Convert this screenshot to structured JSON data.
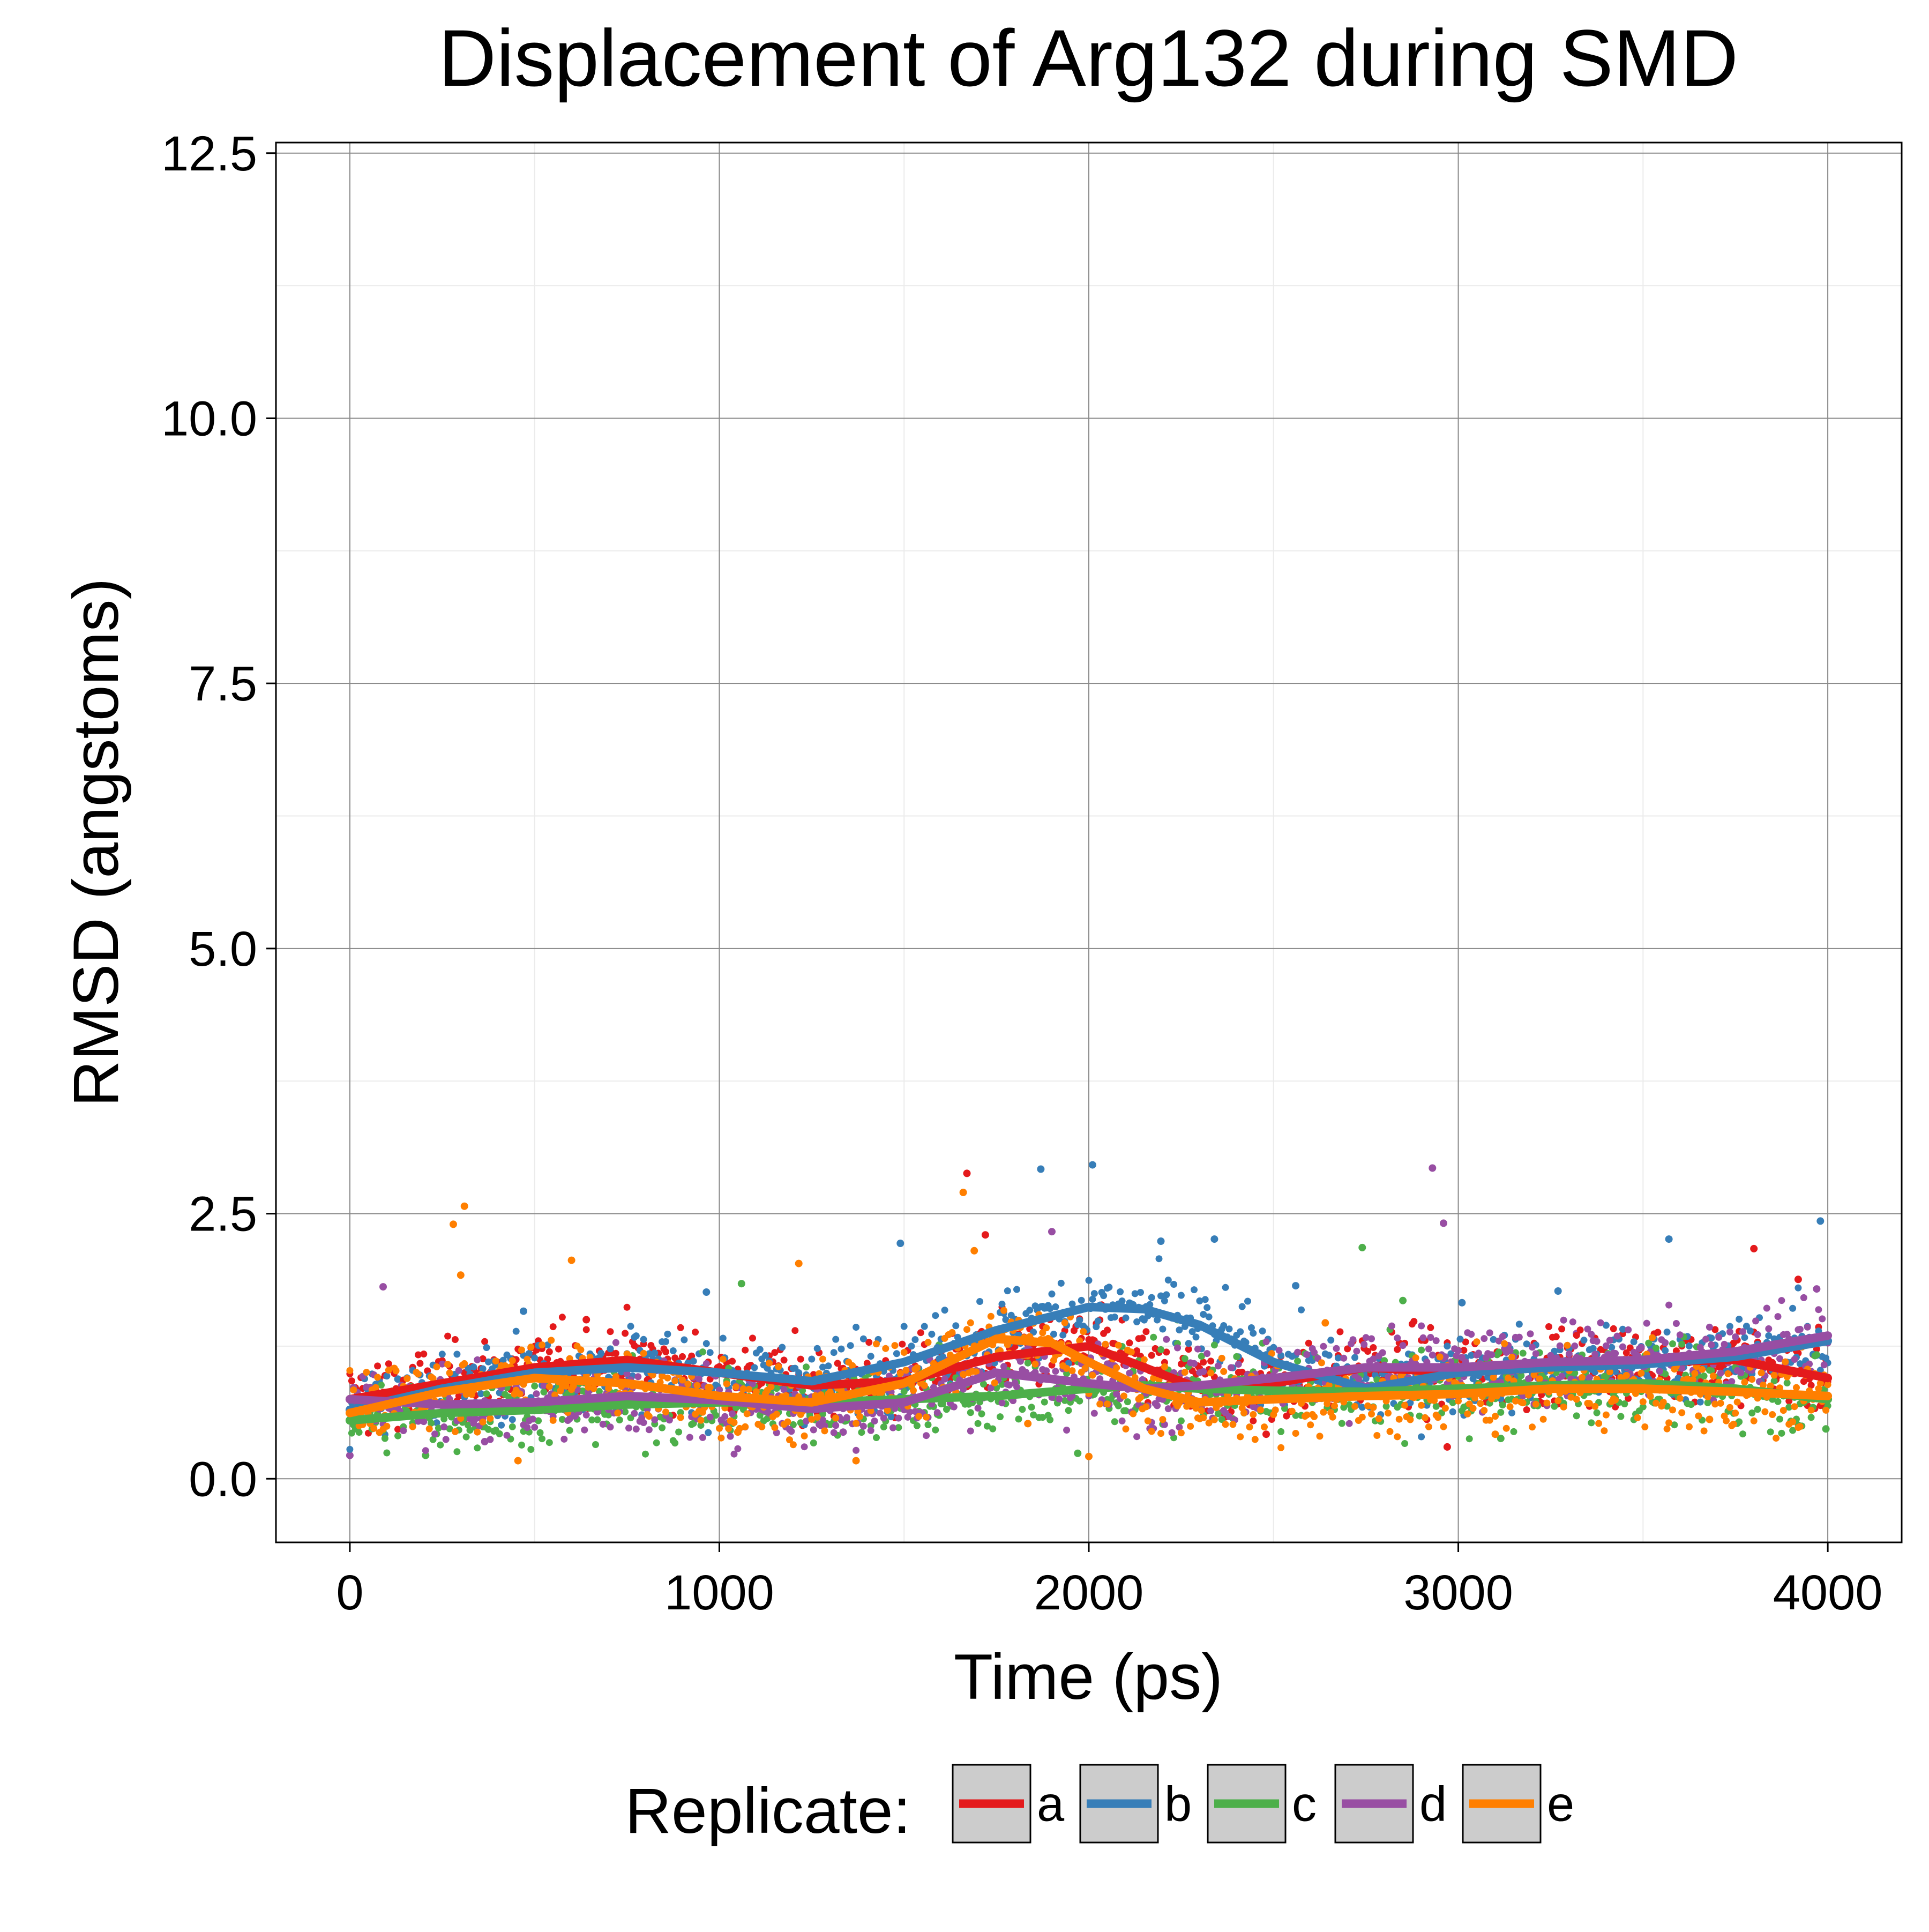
{
  "chart_data": {
    "type": "scatter",
    "title": "Displacement of Arg132 during SMD",
    "xlabel": "Time (ps)",
    "ylabel": "RMSD (angstoms)",
    "xlim": [
      -200,
      4200
    ],
    "ylim": [
      -0.6,
      12.6
    ],
    "x_ticks": [
      0,
      1000,
      2000,
      3000,
      4000
    ],
    "x_tick_labels": [
      "0",
      "1000",
      "2000",
      "3000",
      "4000"
    ],
    "y_ticks": [
      0,
      2.5,
      5,
      7.5,
      10,
      12.5
    ],
    "y_tick_labels": [
      "0.0",
      "2.5",
      "5.0",
      "7.5",
      "10.0",
      "12.5"
    ],
    "grid": true,
    "legend": {
      "title": "Replicate:",
      "placement": "bottom"
    },
    "series": [
      {
        "name": "a",
        "color": "#E41A1C",
        "smooth": [
          [
            0,
            0.75
          ],
          [
            250,
            0.9
          ],
          [
            500,
            1.05
          ],
          [
            750,
            1.12
          ],
          [
            1000,
            1.0
          ],
          [
            1250,
            0.88
          ],
          [
            1500,
            0.92
          ],
          [
            1750,
            1.15
          ],
          [
            2000,
            1.25
          ],
          [
            2150,
            1.05
          ],
          [
            2300,
            0.85
          ],
          [
            2500,
            0.9
          ],
          [
            2750,
            1.05
          ],
          [
            3000,
            1.0
          ],
          [
            3250,
            1.05
          ],
          [
            3500,
            1.1
          ],
          [
            3750,
            1.12
          ],
          [
            4000,
            0.95
          ]
        ],
        "points": [
          [
            310,
            0.56
          ],
          [
            640,
            1.5
          ],
          [
            735,
            0.98
          ],
          [
            1270,
            0.62
          ],
          [
            1670,
            2.88
          ],
          [
            1720,
            2.3
          ],
          [
            2150,
            1.06
          ],
          [
            2480,
            0.42
          ],
          [
            2970,
            0.3
          ],
          [
            3390,
            0.88
          ],
          [
            3800,
            2.17
          ],
          [
            3920,
            1.88
          ]
        ]
      },
      {
        "name": "b",
        "color": "#377EB8",
        "smooth": [
          [
            0,
            0.65
          ],
          [
            250,
            0.85
          ],
          [
            500,
            1.0
          ],
          [
            750,
            1.05
          ],
          [
            1000,
            1.0
          ],
          [
            1250,
            0.92
          ],
          [
            1500,
            1.1
          ],
          [
            1750,
            1.4
          ],
          [
            2000,
            1.62
          ],
          [
            2150,
            1.6
          ],
          [
            2300,
            1.45
          ],
          [
            2500,
            1.1
          ],
          [
            2750,
            0.85
          ],
          [
            3000,
            1.0
          ],
          [
            3250,
            1.05
          ],
          [
            3500,
            1.08
          ],
          [
            3750,
            1.15
          ],
          [
            4000,
            1.3
          ]
        ],
        "points": [
          [
            130,
            0.94
          ],
          [
            470,
            1.58
          ],
          [
            965,
            1.76
          ],
          [
            1140,
            0.9
          ],
          [
            1490,
            2.22
          ],
          [
            1870,
            2.92
          ],
          [
            2010,
            2.96
          ],
          [
            2195,
            2.24
          ],
          [
            2340,
            2.26
          ],
          [
            2560,
            1.82
          ],
          [
            3010,
            1.66
          ],
          [
            3270,
            1.77
          ],
          [
            3570,
            2.26
          ],
          [
            3980,
            2.43
          ]
        ]
      },
      {
        "name": "c",
        "color": "#4DAF4A",
        "smooth": [
          [
            0,
            0.55
          ],
          [
            250,
            0.62
          ],
          [
            500,
            0.65
          ],
          [
            750,
            0.7
          ],
          [
            1000,
            0.72
          ],
          [
            1250,
            0.72
          ],
          [
            1500,
            0.75
          ],
          [
            1750,
            0.78
          ],
          [
            2000,
            0.85
          ],
          [
            2150,
            0.88
          ],
          [
            2300,
            0.85
          ],
          [
            2500,
            0.83
          ],
          [
            2750,
            0.82
          ],
          [
            3000,
            0.85
          ],
          [
            3250,
            0.88
          ],
          [
            3500,
            0.9
          ],
          [
            3750,
            0.85
          ],
          [
            4000,
            0.75
          ]
        ],
        "points": [
          [
            205,
            0.22
          ],
          [
            430,
            0.67
          ],
          [
            1060,
            1.84
          ],
          [
            1595,
            1.26
          ],
          [
            1970,
            0.24
          ],
          [
            2240,
            1.5
          ],
          [
            2740,
            2.18
          ],
          [
            2850,
            1.68
          ],
          [
            3115,
            0.38
          ],
          [
            3440,
            0.84
          ],
          [
            3860,
            1.01
          ],
          [
            3995,
            0.47
          ]
        ]
      },
      {
        "name": "d",
        "color": "#984EA3",
        "smooth": [
          [
            0,
            0.75
          ],
          [
            250,
            0.7
          ],
          [
            500,
            0.72
          ],
          [
            750,
            0.78
          ],
          [
            1000,
            0.74
          ],
          [
            1250,
            0.66
          ],
          [
            1500,
            0.72
          ],
          [
            1750,
            1.0
          ],
          [
            2000,
            0.9
          ],
          [
            2150,
            0.85
          ],
          [
            2300,
            0.88
          ],
          [
            2500,
            0.95
          ],
          [
            2750,
            1.05
          ],
          [
            3000,
            1.05
          ],
          [
            3250,
            1.1
          ],
          [
            3500,
            1.12
          ],
          [
            3750,
            1.2
          ],
          [
            4000,
            1.35
          ]
        ],
        "points": [
          [
            0,
            0.22
          ],
          [
            90,
            1.81
          ],
          [
            365,
            0.35
          ],
          [
            900,
            0.88
          ],
          [
            1335,
            0.44
          ],
          [
            1900,
            2.33
          ],
          [
            2380,
            0.81
          ],
          [
            2930,
            2.93
          ],
          [
            2960,
            2.41
          ],
          [
            3320,
            1.37
          ],
          [
            3690,
            0.74
          ],
          [
            3970,
            1.79
          ]
        ]
      },
      {
        "name": "e",
        "color": "#FF7F00",
        "smooth": [
          [
            0,
            0.62
          ],
          [
            250,
            0.82
          ],
          [
            500,
            0.95
          ],
          [
            750,
            0.9
          ],
          [
            1000,
            0.78
          ],
          [
            1250,
            0.72
          ],
          [
            1500,
            0.9
          ],
          [
            1750,
            1.32
          ],
          [
            1900,
            1.28
          ],
          [
            2000,
            1.1
          ],
          [
            2150,
            0.85
          ],
          [
            2300,
            0.72
          ],
          [
            2500,
            0.75
          ],
          [
            2750,
            0.78
          ],
          [
            3000,
            0.8
          ],
          [
            3250,
            0.85
          ],
          [
            3500,
            0.85
          ],
          [
            3750,
            0.82
          ],
          [
            4000,
            0.78
          ]
        ],
        "points": [
          [
            120,
            1.04
          ],
          [
            280,
            2.4
          ],
          [
            310,
            2.57
          ],
          [
            300,
            1.92
          ],
          [
            455,
            0.17
          ],
          [
            600,
            2.06
          ],
          [
            1050,
            0.44
          ],
          [
            1215,
            2.03
          ],
          [
            1370,
            0.17
          ],
          [
            1660,
            2.7
          ],
          [
            1690,
            2.15
          ],
          [
            1835,
            0.52
          ],
          [
            2000,
            0.21
          ],
          [
            2640,
            1.47
          ],
          [
            3100,
            0.42
          ],
          [
            3680,
            0.56
          ]
        ]
      }
    ]
  }
}
